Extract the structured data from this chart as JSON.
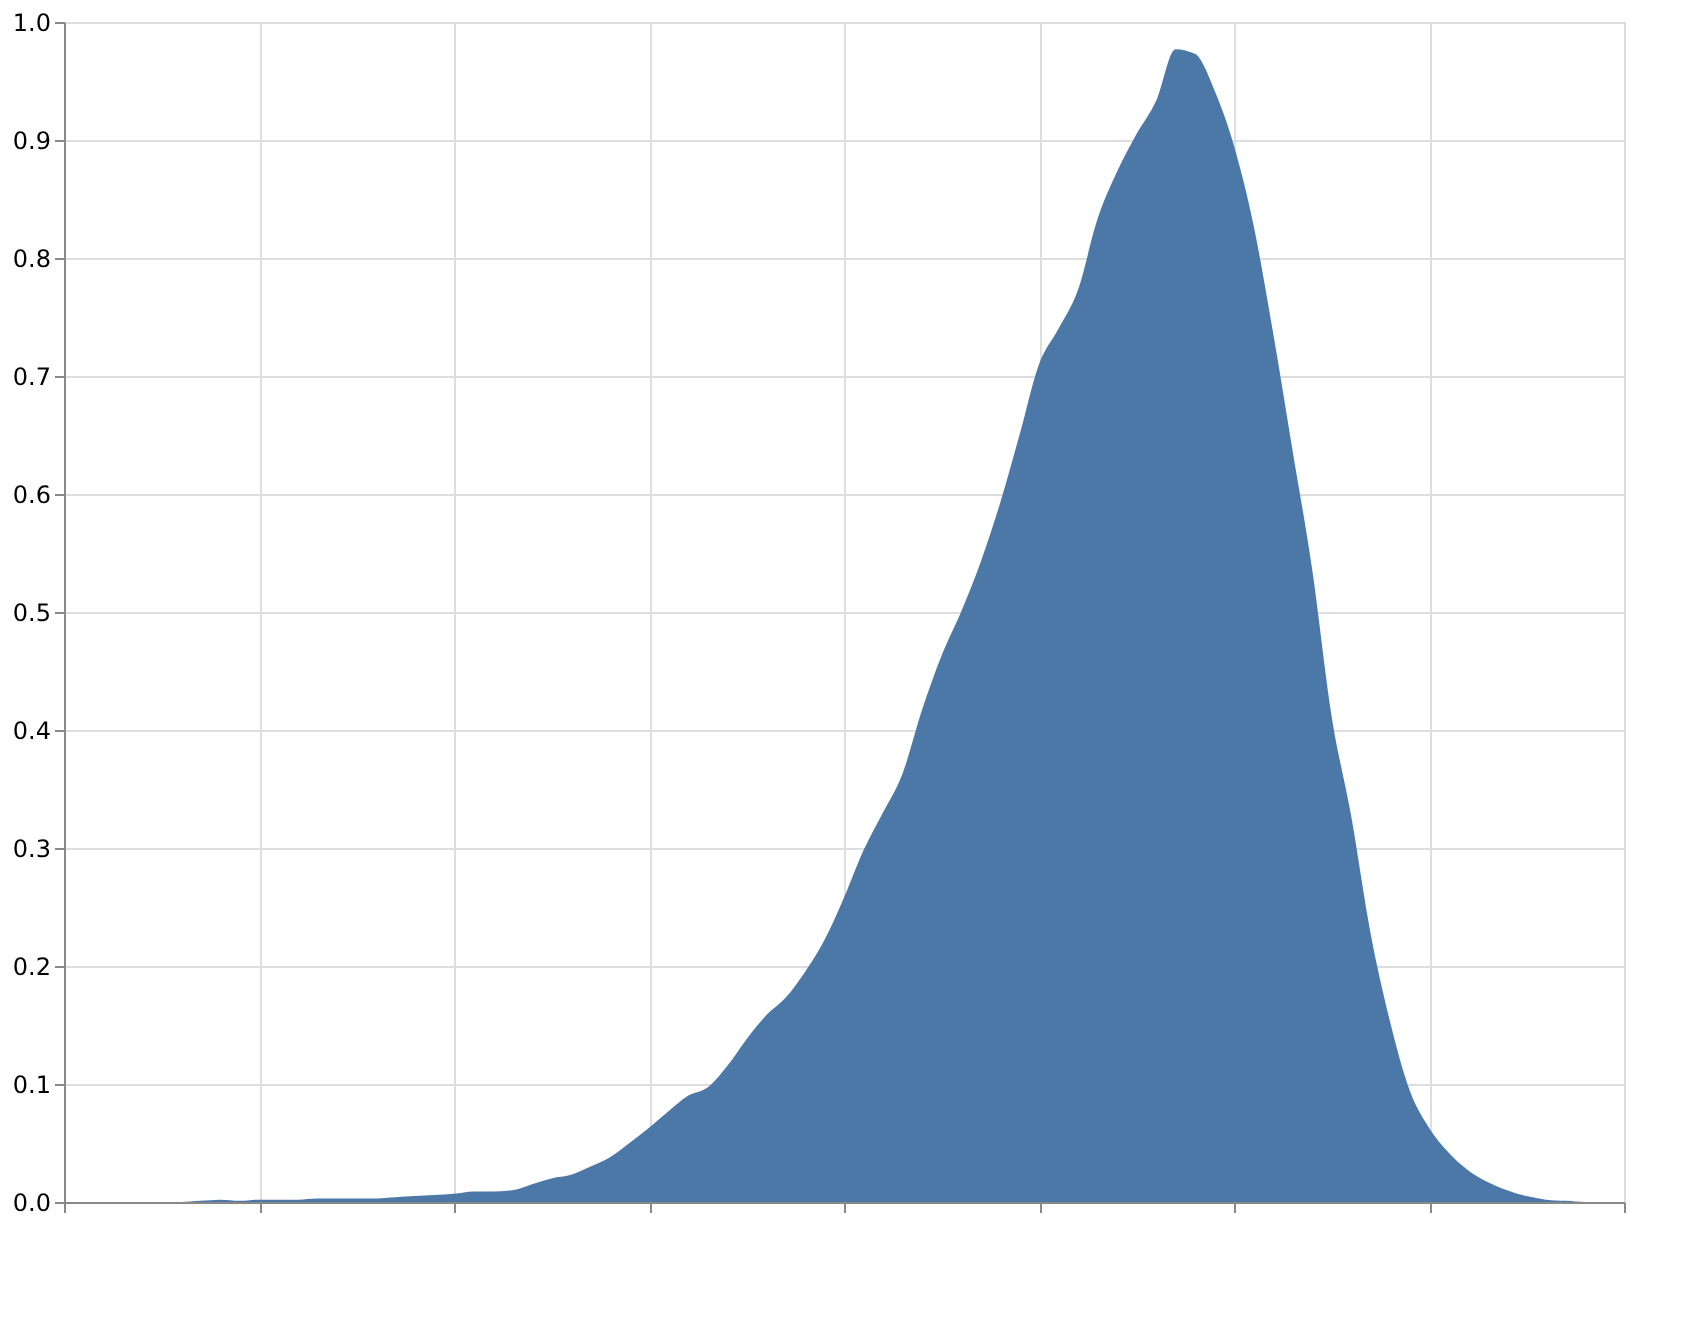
{
  "chart_data": {
    "type": "area",
    "color": "#4c78a8",
    "grid": true,
    "tick_labels": "y",
    "categories": [
      null,
      null,
      null,
      null,
      null,
      null,
      null,
      null,
      null,
      null,
      null,
      null,
      null,
      null,
      null,
      null,
      null,
      null,
      null,
      null,
      null,
      null,
      null,
      null,
      null,
      null,
      null,
      null,
      null,
      null,
      null,
      null,
      null,
      null,
      null,
      null,
      null,
      null,
      null,
      null,
      null,
      null,
      null,
      null,
      null,
      null,
      null,
      null,
      null,
      null,
      null,
      null,
      null,
      null,
      null,
      null,
      null,
      null,
      null,
      null,
      null,
      null,
      null,
      null,
      null,
      null,
      null,
      null,
      null,
      null,
      null,
      null,
      null,
      null,
      null,
      null,
      null,
      null,
      null,
      null,
      null
    ],
    "values": [
      0,
      0,
      0,
      0,
      0,
      0,
      0,
      0.001,
      0.002,
      0.001,
      0.002,
      0.002,
      0.002,
      0.003,
      0.003,
      0.003,
      0.003,
      0.004,
      0.005,
      0.006,
      0.007,
      0.009,
      0.009,
      0.01,
      0.015,
      0.02,
      0.023,
      0.03,
      0.038,
      0.05,
      0.063,
      0.077,
      0.09,
      0.097,
      0.115,
      0.138,
      0.158,
      0.173,
      0.195,
      0.222,
      0.258,
      0.298,
      0.33,
      0.363,
      0.417,
      0.463,
      0.5,
      0.542,
      0.592,
      0.65,
      0.71,
      0.74,
      0.773,
      0.833,
      0.873,
      0.905,
      0.933,
      0.977,
      0.973,
      0.942,
      0.895,
      0.828,
      0.737,
      0.637,
      0.537,
      0.412,
      0.328,
      0.228,
      0.153,
      0.095,
      0.063,
      0.042,
      0.027,
      0.017,
      0.01,
      0.005,
      0.002,
      0.001,
      0,
      0,
      0
    ],
    "ylim": [
      0,
      1
    ],
    "yticks": [
      {
        "value": 0,
        "label": "0.0"
      },
      0.1,
      0.2,
      0.3,
      0.4,
      0.5,
      0.6,
      0.7,
      0.8,
      0.9,
      {
        "value": 1,
        "label": "1.0"
      }
    ]
  }
}
